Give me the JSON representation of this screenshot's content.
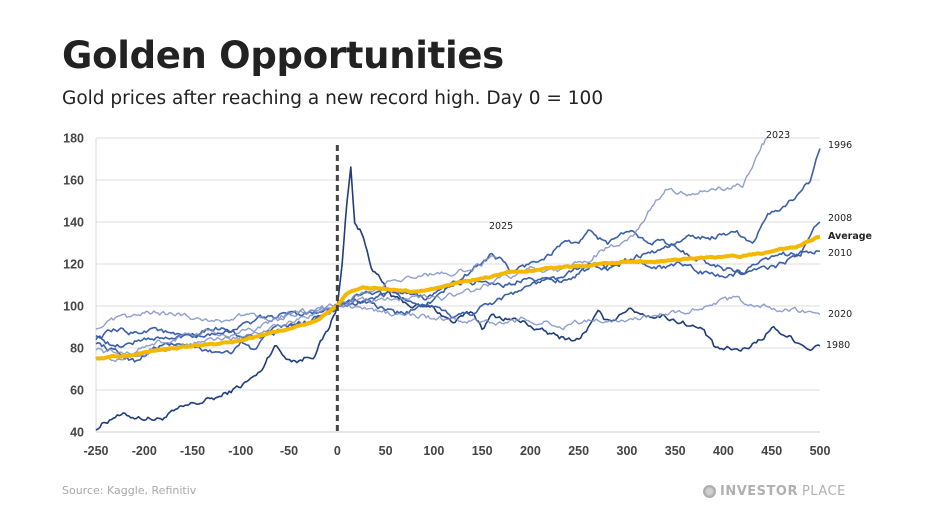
{
  "header": {
    "title": "Golden Opportunities",
    "subtitle": "Gold prices after reaching a new record high. Day 0 = 100"
  },
  "footer": {
    "source": "Source: Kaggle, Refinitiv",
    "brand_bold": "INVESTOR",
    "brand_light": "PLACE",
    "brand_icon": "globe-icon"
  },
  "colors": {
    "average": "#f5b800",
    "dark": "#1f3d7a",
    "mid": "#3a5fa8",
    "light": "#7b8fc4",
    "grid": "#dddddd",
    "marker": "#444444"
  },
  "chart_data": {
    "type": "line",
    "title": "Golden Opportunities",
    "subtitle": "Gold prices after reaching a new record high. Day 0 = 100",
    "xlabel": "",
    "ylabel": "",
    "xlim": [
      -250,
      500
    ],
    "ylim": [
      40,
      180
    ],
    "x_ticks": [
      "-250",
      "-200",
      "-150",
      "-100",
      "-50",
      "0",
      "50",
      "100",
      "150",
      "200",
      "250",
      "300",
      "350",
      "400",
      "450",
      "500"
    ],
    "y_ticks": [
      "40",
      "60",
      "80",
      "100",
      "120",
      "140",
      "160",
      "180"
    ],
    "grid": "horizontal",
    "reference_line": {
      "x": 0,
      "style": "dashed"
    },
    "legend": "inline labels at series ends",
    "series": [
      {
        "name": "1980",
        "label": "1980",
        "tone": "dark",
        "points": [
          [
            -250,
            42
          ],
          [
            -230,
            48
          ],
          [
            -200,
            47
          ],
          [
            -185,
            46
          ],
          [
            -150,
            53
          ],
          [
            -120,
            57
          ],
          [
            -100,
            62
          ],
          [
            -80,
            68
          ],
          [
            -65,
            82
          ],
          [
            -55,
            76
          ],
          [
            -40,
            74
          ],
          [
            -25,
            77
          ],
          [
            -10,
            88
          ],
          [
            0,
            100
          ],
          [
            5,
            120
          ],
          [
            10,
            150
          ],
          [
            14,
            166
          ],
          [
            18,
            140
          ],
          [
            25,
            135
          ],
          [
            35,
            120
          ],
          [
            50,
            108
          ],
          [
            60,
            103
          ],
          [
            80,
            100
          ],
          [
            100,
            99
          ],
          [
            120,
            92
          ],
          [
            140,
            97
          ],
          [
            150,
            90
          ],
          [
            160,
            95
          ],
          [
            180,
            94
          ],
          [
            200,
            91
          ],
          [
            210,
            88
          ],
          [
            230,
            85
          ],
          [
            250,
            84
          ],
          [
            260,
            90
          ],
          [
            270,
            96
          ],
          [
            280,
            92
          ],
          [
            300,
            99
          ],
          [
            320,
            96
          ],
          [
            340,
            95
          ],
          [
            360,
            92
          ],
          [
            380,
            88
          ],
          [
            390,
            80
          ],
          [
            400,
            79
          ],
          [
            420,
            79
          ],
          [
            440,
            85
          ],
          [
            450,
            90
          ],
          [
            470,
            85
          ],
          [
            490,
            80
          ],
          [
            500,
            81
          ]
        ],
        "end_value": 81
      },
      {
        "name": "1996",
        "label": "1996",
        "tone": "mid",
        "points": [
          [
            -250,
            83
          ],
          [
            -230,
            78
          ],
          [
            -210,
            74
          ],
          [
            -190,
            80
          ],
          [
            -170,
            82
          ],
          [
            -150,
            80
          ],
          [
            -130,
            78
          ],
          [
            -110,
            79
          ],
          [
            -100,
            83
          ],
          [
            -90,
            79
          ],
          [
            -70,
            86
          ],
          [
            -50,
            90
          ],
          [
            -30,
            93
          ],
          [
            0,
            100
          ],
          [
            30,
            103
          ],
          [
            60,
            106
          ],
          [
            90,
            104
          ],
          [
            120,
            110
          ],
          [
            150,
            112
          ],
          [
            180,
            110
          ],
          [
            200,
            115
          ],
          [
            220,
            112
          ],
          [
            240,
            113
          ],
          [
            250,
            116
          ],
          [
            270,
            118
          ],
          [
            290,
            120
          ],
          [
            310,
            124
          ],
          [
            330,
            126
          ],
          [
            350,
            130
          ],
          [
            370,
            133
          ],
          [
            390,
            133
          ],
          [
            410,
            136
          ],
          [
            430,
            131
          ],
          [
            450,
            145
          ],
          [
            470,
            150
          ],
          [
            490,
            160
          ],
          [
            500,
            175
          ]
        ],
        "end_value": 175
      },
      {
        "name": "2008",
        "label": "2008",
        "tone": "mid",
        "points": [
          [
            -250,
            87
          ],
          [
            -230,
            80
          ],
          [
            -210,
            83
          ],
          [
            -190,
            85
          ],
          [
            -170,
            84
          ],
          [
            -150,
            87
          ],
          [
            -130,
            90
          ],
          [
            -110,
            89
          ],
          [
            -90,
            92
          ],
          [
            -70,
            95
          ],
          [
            -50,
            96
          ],
          [
            -30,
            97
          ],
          [
            0,
            100
          ],
          [
            20,
            103
          ],
          [
            40,
            100
          ],
          [
            60,
            96
          ],
          [
            80,
            98
          ],
          [
            100,
            103
          ],
          [
            120,
            110
          ],
          [
            140,
            117
          ],
          [
            160,
            125
          ],
          [
            170,
            122
          ],
          [
            180,
            116
          ],
          [
            200,
            120
          ],
          [
            220,
            125
          ],
          [
            240,
            132
          ],
          [
            250,
            128
          ],
          [
            260,
            135
          ],
          [
            280,
            130
          ],
          [
            300,
            135
          ],
          [
            320,
            132
          ],
          [
            340,
            130
          ],
          [
            360,
            125
          ],
          [
            380,
            122
          ],
          [
            400,
            118
          ],
          [
            420,
            116
          ],
          [
            440,
            117
          ],
          [
            460,
            120
          ],
          [
            480,
            125
          ],
          [
            490,
            133
          ],
          [
            500,
            140
          ]
        ],
        "end_value": 140
      },
      {
        "name": "2010",
        "label": "2010",
        "tone": "mid",
        "points": [
          [
            -250,
            85
          ],
          [
            -230,
            88
          ],
          [
            -210,
            87
          ],
          [
            -190,
            90
          ],
          [
            -170,
            86
          ],
          [
            -150,
            84
          ],
          [
            -130,
            86
          ],
          [
            -110,
            88
          ],
          [
            -90,
            85
          ],
          [
            -70,
            88
          ],
          [
            -50,
            90
          ],
          [
            -30,
            92
          ],
          [
            0,
            100
          ],
          [
            20,
            104
          ],
          [
            40,
            107
          ],
          [
            60,
            104
          ],
          [
            80,
            102
          ],
          [
            100,
            98
          ],
          [
            120,
            95
          ],
          [
            140,
            97
          ],
          [
            160,
            102
          ],
          [
            180,
            106
          ],
          [
            200,
            110
          ],
          [
            220,
            112
          ],
          [
            240,
            115
          ],
          [
            260,
            120
          ],
          [
            280,
            118
          ],
          [
            300,
            122
          ],
          [
            320,
            120
          ],
          [
            340,
            118
          ],
          [
            360,
            120
          ],
          [
            380,
            116
          ],
          [
            400,
            114
          ],
          [
            420,
            116
          ],
          [
            440,
            120
          ],
          [
            460,
            124
          ],
          [
            480,
            126
          ],
          [
            500,
            126
          ]
        ],
        "end_value": 126
      },
      {
        "name": "2020",
        "label": "2020",
        "tone": "light",
        "points": [
          [
            -250,
            90
          ],
          [
            -230,
            93
          ],
          [
            -210,
            95
          ],
          [
            -190,
            97
          ],
          [
            -170,
            96
          ],
          [
            -150,
            95
          ],
          [
            -130,
            93
          ],
          [
            -110,
            94
          ],
          [
            -90,
            96
          ],
          [
            -70,
            95
          ],
          [
            -50,
            96
          ],
          [
            -30,
            97
          ],
          [
            0,
            100
          ],
          [
            30,
            98
          ],
          [
            60,
            96
          ],
          [
            90,
            95
          ],
          [
            120,
            93
          ],
          [
            150,
            92
          ],
          [
            170,
            91
          ],
          [
            190,
            94
          ],
          [
            210,
            93
          ],
          [
            230,
            90
          ],
          [
            250,
            92
          ],
          [
            270,
            93
          ],
          [
            290,
            94
          ],
          [
            310,
            94
          ],
          [
            330,
            96
          ],
          [
            350,
            97
          ],
          [
            370,
            99
          ],
          [
            390,
            101
          ],
          [
            410,
            103
          ],
          [
            430,
            101
          ],
          [
            440,
            100
          ],
          [
            460,
            98
          ],
          [
            480,
            97
          ],
          [
            500,
            96
          ]
        ],
        "end_value": 96
      },
      {
        "name": "2023",
        "label": "2023",
        "tone": "light",
        "points": [
          [
            -250,
            80
          ],
          [
            -230,
            77
          ],
          [
            -210,
            79
          ],
          [
            -190,
            82
          ],
          [
            -170,
            84
          ],
          [
            -150,
            86
          ],
          [
            -130,
            88
          ],
          [
            -110,
            86
          ],
          [
            -90,
            88
          ],
          [
            -70,
            92
          ],
          [
            -50,
            95
          ],
          [
            -30,
            97
          ],
          [
            0,
            100
          ],
          [
            20,
            102
          ],
          [
            50,
            103
          ],
          [
            80,
            105
          ],
          [
            110,
            104
          ],
          [
            140,
            107
          ],
          [
            170,
            113
          ],
          [
            200,
            118
          ],
          [
            230,
            116
          ],
          [
            250,
            120
          ],
          [
            270,
            125
          ],
          [
            290,
            130
          ],
          [
            310,
            136
          ],
          [
            320,
            142
          ],
          [
            330,
            150
          ],
          [
            340,
            155
          ],
          [
            360,
            153
          ],
          [
            380,
            155
          ],
          [
            400,
            156
          ],
          [
            420,
            158
          ],
          [
            430,
            165
          ],
          [
            440,
            176
          ],
          [
            445,
            180
          ]
        ],
        "end_value": 180
      },
      {
        "name": "2025",
        "label": "2025",
        "tone": "light",
        "points": [
          [
            -250,
            76
          ],
          [
            -230,
            74
          ],
          [
            -210,
            76
          ],
          [
            -190,
            79
          ],
          [
            -170,
            80
          ],
          [
            -150,
            82
          ],
          [
            -130,
            84
          ],
          [
            -110,
            85
          ],
          [
            -90,
            87
          ],
          [
            -70,
            90
          ],
          [
            -50,
            93
          ],
          [
            -30,
            95
          ],
          [
            0,
            100
          ],
          [
            20,
            105
          ],
          [
            40,
            108
          ],
          [
            60,
            113
          ],
          [
            80,
            114
          ],
          [
            100,
            115
          ],
          [
            120,
            116
          ],
          [
            140,
            118
          ],
          [
            155,
            122
          ],
          [
            165,
            123
          ]
        ],
        "end_value": 123
      },
      {
        "name": "Average",
        "label": "Average",
        "tone": "average",
        "points": [
          [
            -250,
            75
          ],
          [
            -230,
            76
          ],
          [
            -210,
            77
          ],
          [
            -190,
            79
          ],
          [
            -170,
            80
          ],
          [
            -150,
            81
          ],
          [
            -130,
            82
          ],
          [
            -110,
            83
          ],
          [
            -95,
            84
          ],
          [
            -80,
            86
          ],
          [
            -60,
            88
          ],
          [
            -40,
            90
          ],
          [
            -20,
            93
          ],
          [
            0,
            100
          ],
          [
            10,
            106
          ],
          [
            25,
            109
          ],
          [
            50,
            108
          ],
          [
            75,
            107
          ],
          [
            100,
            108
          ],
          [
            125,
            111
          ],
          [
            150,
            113
          ],
          [
            175,
            116
          ],
          [
            200,
            117
          ],
          [
            225,
            118
          ],
          [
            250,
            119
          ],
          [
            275,
            120
          ],
          [
            300,
            121
          ],
          [
            325,
            121
          ],
          [
            350,
            122
          ],
          [
            375,
            123
          ],
          [
            400,
            123
          ],
          [
            425,
            124
          ],
          [
            450,
            126
          ],
          [
            475,
            128
          ],
          [
            500,
            133
          ]
        ],
        "end_value": 133
      }
    ]
  }
}
